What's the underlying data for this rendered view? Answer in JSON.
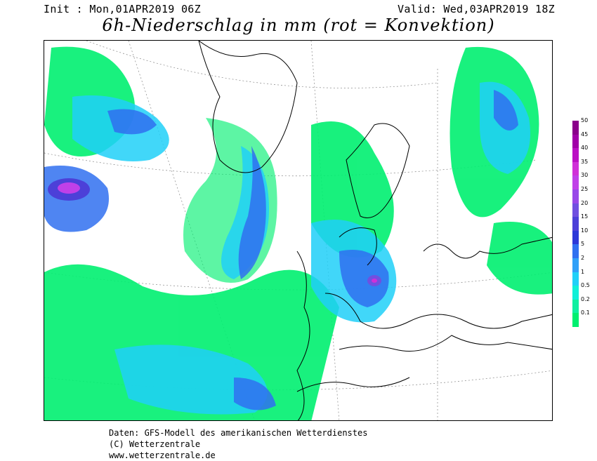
{
  "header": {
    "init": "Init : Mon,01APR2019 06Z",
    "valid": "Valid: Wed,03APR2019 18Z",
    "title": "6h-Niederschlag in mm (rot = Konvektion)"
  },
  "legend": [
    {
      "label": "50",
      "color": "#8b008b"
    },
    {
      "label": "45",
      "color": "#a100a8"
    },
    {
      "label": "40",
      "color": "#bb10c4"
    },
    {
      "label": "35",
      "color": "#d030d8"
    },
    {
      "label": "30",
      "color": "#c040e8"
    },
    {
      "label": "25",
      "color": "#9848e8"
    },
    {
      "label": "20",
      "color": "#7050e0"
    },
    {
      "label": "15",
      "color": "#4c40d8"
    },
    {
      "label": "10",
      "color": "#2c38d8"
    },
    {
      "label": "5",
      "color": "#3070f0"
    },
    {
      "label": "2",
      "color": "#30a0f8"
    },
    {
      "label": "1",
      "color": "#20d0f8"
    },
    {
      "label": "0.5",
      "color": "#10f0d8"
    },
    {
      "label": "0.2",
      "color": "#10f0a0"
    },
    {
      "label": "0.1",
      "color": "#00f070"
    }
  ],
  "footer": {
    "line1": "Daten: GFS-Modell des amerikanischen Wetterdienstes",
    "line2": "(C) Wetterzentrale",
    "line3": "www.wetterzentrale.de"
  }
}
